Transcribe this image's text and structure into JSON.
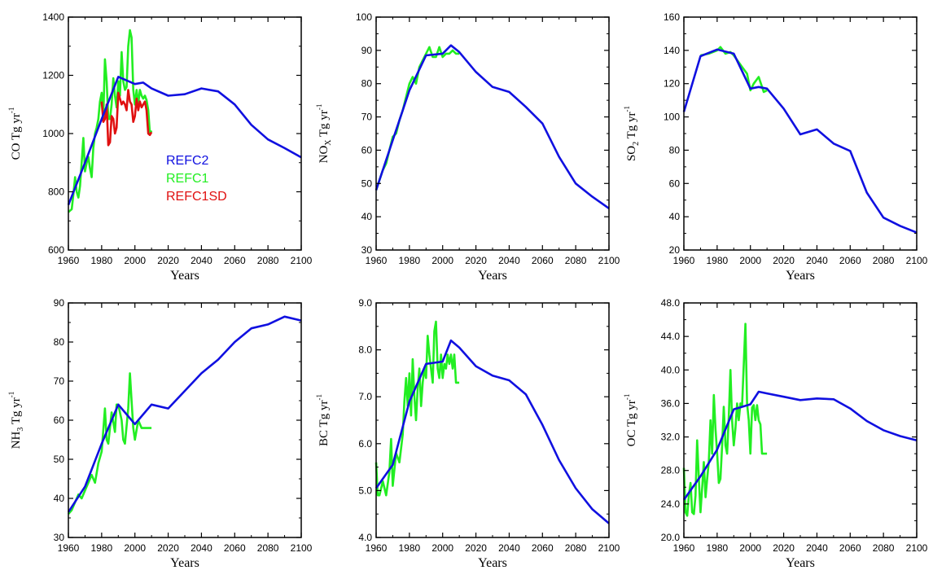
{
  "colors": {
    "REFC2": "#1010e0",
    "REFC1": "#22ee22",
    "REFC1SD": "#e01010"
  },
  "legend": {
    "position": "inside-upper-right-of-first-panel",
    "entries": [
      {
        "name": "REFC2",
        "color": "#1010e0"
      },
      {
        "name": "REFC1",
        "color": "#22ee22"
      },
      {
        "name": "REFC1SD",
        "color": "#e01010"
      }
    ]
  },
  "chart_data": [
    {
      "type": "line",
      "ylabel": {
        "base": "CO",
        "sub": "",
        "unit": " Tg yr",
        "sup": "-1"
      },
      "xlabel": "Years",
      "xlim": [
        1960,
        2100
      ],
      "ylim": [
        600,
        1400
      ],
      "xticks": [
        "1960",
        "1980",
        "2000",
        "2020",
        "2040",
        "2060",
        "2080",
        "2100"
      ],
      "yticks": [
        "600",
        "800",
        "1000",
        "1200",
        "1400"
      ],
      "series": [
        {
          "name": "REFC1",
          "color": "#22ee22",
          "x": [
            1960,
            1961,
            1962,
            1963,
            1964,
            1965,
            1966,
            1967,
            1968,
            1969,
            1970,
            1971,
            1972,
            1973,
            1974,
            1975,
            1976,
            1977,
            1978,
            1979,
            1980,
            1981,
            1982,
            1983,
            1984,
            1985,
            1986,
            1987,
            1988,
            1989,
            1990,
            1991,
            1992,
            1993,
            1994,
            1995,
            1996,
            1997,
            1998,
            1999,
            2000,
            2001,
            2002,
            2003,
            2004,
            2005,
            2006,
            2007,
            2008,
            2009,
            2010
          ],
          "y": [
            730,
            735,
            740,
            790,
            850,
            800,
            780,
            820,
            900,
            985,
            870,
            900,
            920,
            880,
            850,
            950,
            1000,
            1020,
            1050,
            1110,
            1140,
            1060,
            1255,
            1180,
            1050,
            1050,
            1100,
            1190,
            1130,
            1090,
            1180,
            1130,
            1280,
            1180,
            1150,
            1160,
            1300,
            1355,
            1330,
            1150,
            1100,
            1150,
            1100,
            1150,
            1130,
            1120,
            1130,
            1115,
            1080,
            1000,
            1010
          ]
        },
        {
          "name": "REFC1SD",
          "color": "#e01010",
          "x": [
            1980,
            1981,
            1982,
            1983,
            1984,
            1985,
            1986,
            1987,
            1988,
            1989,
            1990,
            1991,
            1992,
            1993,
            1994,
            1995,
            1996,
            1997,
            1998,
            1999,
            2000,
            2001,
            2002,
            2003,
            2004,
            2005,
            2006,
            2007,
            2008,
            2009,
            2010
          ],
          "y": [
            1110,
            1040,
            1050,
            1100,
            960,
            970,
            1060,
            1050,
            1000,
            1020,
            1140,
            1120,
            1100,
            1110,
            1100,
            1080,
            1150,
            1110,
            1100,
            1040,
            1060,
            1120,
            1080,
            1110,
            1090,
            1100,
            1110,
            1080,
            1000,
            995,
            1005
          ]
        },
        {
          "name": "REFC2",
          "color": "#1010e0",
          "x": [
            1960,
            1970,
            1980,
            1990,
            2000,
            2005,
            2010,
            2020,
            2030,
            2040,
            2050,
            2060,
            2070,
            2080,
            2090,
            2100
          ],
          "y": [
            755,
            900,
            1050,
            1195,
            1170,
            1175,
            1155,
            1130,
            1135,
            1155,
            1145,
            1100,
            1030,
            980,
            950,
            918
          ]
        }
      ]
    },
    {
      "type": "line",
      "ylabel": {
        "base": "NO",
        "sub": "X",
        "unit": " Tg yr",
        "sup": "-1"
      },
      "xlabel": "Years",
      "xlim": [
        1960,
        2100
      ],
      "ylim": [
        30,
        100
      ],
      "xticks": [
        "1960",
        "1980",
        "2000",
        "2020",
        "2040",
        "2060",
        "2080",
        "2100"
      ],
      "yticks": [
        "30",
        "40",
        "50",
        "60",
        "70",
        "80",
        "90",
        "100"
      ],
      "series": [
        {
          "name": "REFC1",
          "color": "#22ee22",
          "x": [
            1960,
            1962,
            1964,
            1966,
            1968,
            1970,
            1972,
            1974,
            1976,
            1978,
            1980,
            1982,
            1984,
            1986,
            1988,
            1990,
            1992,
            1994,
            1996,
            1998,
            2000,
            2002,
            2004,
            2006,
            2008,
            2010
          ],
          "y": [
            48,
            51,
            54,
            56,
            60,
            64,
            65,
            69,
            72,
            76,
            80,
            82,
            80,
            85,
            87,
            89,
            91,
            88,
            88,
            91,
            88,
            89,
            89,
            90,
            89,
            89
          ]
        },
        {
          "name": "REFC2",
          "color": "#1010e0",
          "x": [
            1960,
            1970,
            1980,
            1990,
            2000,
            2005,
            2010,
            2020,
            2030,
            2040,
            2050,
            2060,
            2070,
            2080,
            2090,
            2100
          ],
          "y": [
            48,
            63,
            78,
            88.5,
            89,
            91.5,
            89.5,
            83.5,
            79,
            77.5,
            73,
            68,
            58,
            50,
            46,
            42.5
          ]
        }
      ]
    },
    {
      "type": "line",
      "ylabel": {
        "base": "SO",
        "sub": "2",
        "unit": " Tg yr",
        "sup": "-1"
      },
      "xlabel": "Years",
      "xlim": [
        1960,
        2100
      ],
      "ylim": [
        20,
        160
      ],
      "xticks": [
        "1960",
        "1980",
        "2000",
        "2020",
        "2040",
        "2060",
        "2080",
        "2100"
      ],
      "yticks": [
        "20",
        "40",
        "60",
        "80",
        "100",
        "120",
        "140",
        "160"
      ],
      "series": [
        {
          "name": "REFC1",
          "color": "#22ee22",
          "x": [
            1970,
            1975,
            1980,
            1982,
            1985,
            1988,
            1990,
            1995,
            1998,
            2000,
            2002,
            2005,
            2008,
            2010
          ],
          "y": [
            137,
            138,
            140,
            142,
            138,
            139,
            137,
            130,
            126,
            116,
            120,
            124,
            115,
            116
          ]
        },
        {
          "name": "REFC2",
          "color": "#1010e0",
          "x": [
            1960,
            1970,
            1980,
            1990,
            2000,
            2005,
            2010,
            2020,
            2030,
            2040,
            2050,
            2060,
            2070,
            2080,
            2090,
            2100
          ],
          "y": [
            103,
            136.5,
            140.5,
            138,
            117,
            118,
            117,
            105,
            89.5,
            92.5,
            84,
            79.5,
            54.5,
            39.5,
            34.5,
            30.5
          ]
        }
      ]
    },
    {
      "type": "line",
      "ylabel": {
        "base": "NH",
        "sub": "3",
        "unit": " Tg yr",
        "sup": "-1"
      },
      "xlabel": "Years",
      "xlim": [
        1960,
        2100
      ],
      "ylim": [
        30,
        90
      ],
      "xticks": [
        "1960",
        "1980",
        "2000",
        "2020",
        "2040",
        "2060",
        "2080",
        "2100"
      ],
      "yticks": [
        "30",
        "40",
        "50",
        "60",
        "70",
        "80",
        "90"
      ],
      "series": [
        {
          "name": "REFC1",
          "color": "#22ee22",
          "x": [
            1960,
            1962,
            1964,
            1966,
            1968,
            1970,
            1972,
            1974,
            1976,
            1978,
            1980,
            1982,
            1983,
            1984,
            1986,
            1988,
            1989,
            1990,
            1992,
            1993,
            1994,
            1996,
            1997,
            1998,
            1999,
            2000,
            2002,
            2004,
            2006,
            2008,
            2010
          ],
          "y": [
            36,
            37,
            39,
            41,
            40,
            42,
            44,
            46,
            44,
            49,
            52,
            63,
            55,
            54,
            62,
            57,
            64,
            64,
            60,
            55,
            54,
            63,
            72,
            65,
            58,
            55,
            60,
            58,
            58,
            58,
            58
          ]
        },
        {
          "name": "REFC2",
          "color": "#1010e0",
          "x": [
            1960,
            1970,
            1980,
            1990,
            2000,
            2010,
            2020,
            2030,
            2040,
            2050,
            2060,
            2070,
            2080,
            2090,
            2100
          ],
          "y": [
            36.5,
            43,
            54,
            64,
            59,
            64,
            63,
            67.5,
            72,
            75.5,
            80,
            83.5,
            84.5,
            86.5,
            85.5
          ]
        }
      ]
    },
    {
      "type": "line",
      "ylabel": {
        "base": "BC",
        "sub": "",
        "unit": " Tg yr",
        "sup": "-1"
      },
      "xlabel": "Years",
      "xlim": [
        1960,
        2100
      ],
      "ylim": [
        4.0,
        9.0
      ],
      "xticks": [
        "1960",
        "1980",
        "2000",
        "2020",
        "2040",
        "2060",
        "2080",
        "2100"
      ],
      "yticks": [
        "4.0",
        "5.0",
        "6.0",
        "7.0",
        "8.0",
        "9.0"
      ],
      "series": [
        {
          "name": "REFC1",
          "color": "#22ee22",
          "x": [
            1960,
            1961,
            1962,
            1964,
            1966,
            1968,
            1969,
            1970,
            1972,
            1974,
            1976,
            1977,
            1978,
            1979,
            1980,
            1981,
            1982,
            1983,
            1984,
            1985,
            1986,
            1987,
            1988,
            1989,
            1990,
            1991,
            1992,
            1993,
            1994,
            1995,
            1996,
            1997,
            1998,
            1999,
            2000,
            2001,
            2002,
            2003,
            2004,
            2005,
            2006,
            2007,
            2008,
            2009,
            2010
          ],
          "y": [
            5.6,
            4.9,
            4.9,
            5.2,
            4.9,
            5.4,
            6.1,
            5.1,
            5.8,
            5.6,
            6.2,
            6.9,
            7.4,
            6.8,
            7.5,
            6.6,
            7.8,
            7.0,
            6.5,
            7.2,
            7.6,
            6.8,
            7.3,
            7.6,
            7.4,
            8.3,
            7.9,
            7.6,
            7.3,
            8.4,
            8.6,
            7.6,
            7.4,
            7.9,
            7.4,
            7.7,
            7.6,
            7.9,
            7.7,
            7.9,
            7.6,
            7.9,
            7.3,
            7.3,
            7.3
          ]
        },
        {
          "name": "REFC2",
          "color": "#1010e0",
          "x": [
            1960,
            1970,
            1980,
            1990,
            2000,
            2005,
            2010,
            2020,
            2030,
            2040,
            2050,
            2060,
            2070,
            2080,
            2090,
            2100
          ],
          "y": [
            5.05,
            5.55,
            6.9,
            7.7,
            7.75,
            8.2,
            8.05,
            7.65,
            7.45,
            7.35,
            7.05,
            6.4,
            5.65,
            5.05,
            4.6,
            4.3
          ]
        }
      ]
    },
    {
      "type": "line",
      "ylabel": {
        "base": "OC",
        "sub": "",
        "unit": " Tg yr",
        "sup": "-1"
      },
      "xlabel": "Years",
      "xlim": [
        1960,
        2100
      ],
      "ylim": [
        20.0,
        48.0
      ],
      "xticks": [
        "1960",
        "1980",
        "2000",
        "2020",
        "2040",
        "2060",
        "2080",
        "2100"
      ],
      "yticks": [
        "20.0",
        "24.0",
        "28.0",
        "32.0",
        "36.0",
        "40.0",
        "44.0",
        "48.0"
      ],
      "series": [
        {
          "name": "REFC1",
          "color": "#22ee22",
          "x": [
            1960,
            1961,
            1962,
            1963,
            1964,
            1965,
            1966,
            1967,
            1968,
            1969,
            1970,
            1971,
            1972,
            1973,
            1974,
            1975,
            1976,
            1977,
            1978,
            1979,
            1980,
            1981,
            1982,
            1983,
            1984,
            1985,
            1986,
            1987,
            1988,
            1989,
            1990,
            1991,
            1992,
            1993,
            1994,
            1995,
            1996,
            1997,
            1998,
            1999,
            2000,
            2001,
            2002,
            2003,
            2004,
            2005,
            2006,
            2007,
            2008,
            2009,
            2010
          ],
          "y": [
            28.3,
            23,
            22.6,
            25,
            26.5,
            23,
            22.8,
            25,
            31.6,
            27,
            23,
            26,
            29,
            24.8,
            27,
            29,
            34,
            30,
            37,
            33,
            30,
            26.5,
            27,
            31,
            35.6,
            31,
            30,
            34.5,
            40,
            34,
            31,
            33,
            36,
            34,
            36,
            35.8,
            40.5,
            45.5,
            36,
            34,
            30,
            35.5,
            35.8,
            34,
            35.8,
            34,
            33.5,
            30,
            30,
            30,
            30
          ]
        },
        {
          "name": "REFC2",
          "color": "#1010e0",
          "x": [
            1960,
            1970,
            1980,
            1990,
            2000,
            2005,
            2010,
            2020,
            2030,
            2040,
            2050,
            2060,
            2070,
            2080,
            2090,
            2100
          ],
          "y": [
            24.5,
            27.3,
            30.5,
            35.3,
            35.9,
            37.4,
            37.2,
            36.8,
            36.4,
            36.6,
            36.5,
            35.4,
            33.9,
            32.8,
            32.1,
            31.6
          ]
        }
      ]
    }
  ]
}
